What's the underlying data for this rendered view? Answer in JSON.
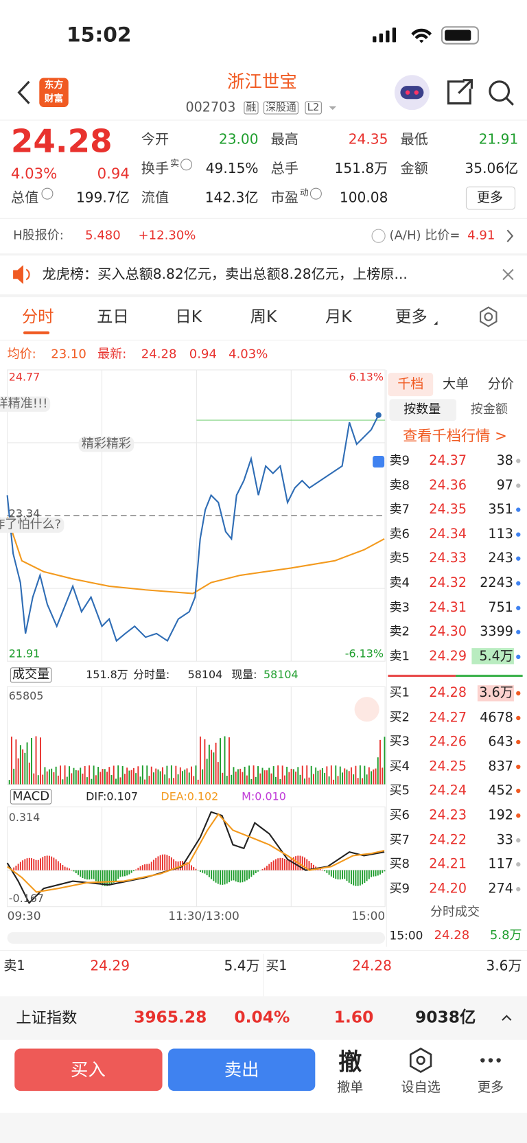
{
  "status": {
    "time": "15:02"
  },
  "header": {
    "logo": [
      "东方",
      "财富"
    ],
    "title": "浙江世宝",
    "code": "002703",
    "tags": [
      "融",
      "深股通",
      "L2"
    ]
  },
  "quote": {
    "price": "24.28",
    "pct": "4.03%",
    "change": "0.94",
    "fields": [
      {
        "label": "今开",
        "value": "23.00"
      },
      {
        "label": "最高",
        "value": "24.35"
      },
      {
        "label": "最低",
        "value": "21.91"
      },
      {
        "label": "换手",
        "sup": "实",
        "value": "49.15%"
      },
      {
        "label": "总手",
        "value": "151.8万"
      },
      {
        "label": "金额",
        "value": "35.06亿"
      },
      {
        "label": "总值",
        "value": "199.7亿"
      },
      {
        "label": "流值",
        "value": "142.3亿"
      },
      {
        "label": "市盈",
        "sup": "动",
        "value": "100.08"
      }
    ],
    "more": "更多"
  },
  "hshare": {
    "label": "H股报价:",
    "price": "5.480",
    "pct": "+12.30%",
    "ratio_label": "(A/H) 比价=",
    "ratio": "4.91"
  },
  "notice": "龙虎榜：买入总额8.82亿元，卖出总额8.28亿元，上榜原...",
  "tabs": [
    "分时",
    "五日",
    "日K",
    "周K",
    "月K",
    "更多"
  ],
  "summary": {
    "avg_label": "均价:",
    "avg": "23.10",
    "latest_label": "最新:",
    "latest": "24.28",
    "change": "0.94",
    "pct": "4.03%"
  },
  "chart": {
    "top_left": "24.77",
    "top_right": "6.13%",
    "bottom_left": "21.91",
    "bottom_right": "-6.13%",
    "ref": "23.34",
    "bubbles": [
      "详精准!!!",
      "精彩精彩",
      "咋了怕什么?"
    ]
  },
  "volume": {
    "selector": "成交量",
    "total": "151.8万",
    "detail_label": "分时量:",
    "detail": "58104",
    "now_label": "现量:",
    "now": "58104",
    "max": "65805"
  },
  "macd": {
    "selector": "MACD",
    "dif": "DIF:0.107",
    "dea": "DEA:0.102",
    "m": "M:0.010",
    "max": "0.314",
    "min": "-0.167"
  },
  "times": [
    "09:30",
    "11:30/13:00",
    "15:00"
  ],
  "orderbook": {
    "tabs": [
      "千档",
      "大单",
      "分价"
    ],
    "subtabs": [
      "按数量",
      "按金额"
    ],
    "link": "查看千档行情 >",
    "asks": [
      {
        "name": "卖9",
        "price": "24.37",
        "vol": "38"
      },
      {
        "name": "卖8",
        "price": "24.36",
        "vol": "97"
      },
      {
        "name": "卖7",
        "price": "24.35",
        "vol": "351"
      },
      {
        "name": "卖6",
        "price": "24.34",
        "vol": "113"
      },
      {
        "name": "卖5",
        "price": "24.33",
        "vol": "243"
      },
      {
        "name": "卖4",
        "price": "24.32",
        "vol": "2243"
      },
      {
        "name": "卖3",
        "price": "24.31",
        "vol": "751"
      },
      {
        "name": "卖2",
        "price": "24.30",
        "vol": "3399"
      },
      {
        "name": "卖1",
        "price": "24.29",
        "vol": "5.4万"
      }
    ],
    "bids": [
      {
        "name": "买1",
        "price": "24.28",
        "vol": "3.6万"
      },
      {
        "name": "买2",
        "price": "24.27",
        "vol": "4678"
      },
      {
        "name": "买3",
        "price": "24.26",
        "vol": "643"
      },
      {
        "name": "买4",
        "price": "24.25",
        "vol": "837"
      },
      {
        "name": "买5",
        "price": "24.24",
        "vol": "452"
      },
      {
        "name": "买6",
        "price": "24.23",
        "vol": "192"
      },
      {
        "name": "买7",
        "price": "24.22",
        "vol": "33"
      },
      {
        "name": "买8",
        "price": "24.21",
        "vol": "117"
      },
      {
        "name": "买9",
        "price": "24.20",
        "vol": "274"
      }
    ]
  },
  "trades": {
    "title": "分时成交",
    "rows": [
      {
        "time": "15:00",
        "price": "24.28",
        "vol": "5.8万"
      }
    ]
  },
  "level1": [
    {
      "name": "卖1",
      "price": "24.29",
      "vol": "5.4万"
    },
    {
      "name": "买1",
      "price": "24.28",
      "vol": "3.6万"
    }
  ],
  "index": {
    "name": "上证指数",
    "value": "3965.28",
    "pct": "0.04%",
    "change": "1.60",
    "amount": "9038亿"
  },
  "actions": {
    "buy": "买入",
    "sell": "卖出",
    "cancel_icon": "撤",
    "items": [
      "撤单",
      "设自选",
      "更多"
    ]
  }
}
